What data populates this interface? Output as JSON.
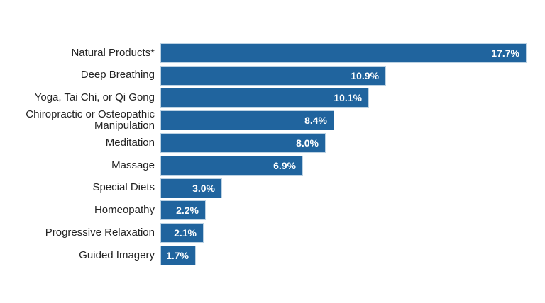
{
  "page": {
    "background_color": "#ffffff"
  },
  "chart_data": {
    "type": "bar",
    "orientation": "horizontal",
    "title": "",
    "xlabel": "",
    "ylabel": "",
    "grid": false,
    "legend": false,
    "xlim": [
      0,
      17.7
    ],
    "categories": [
      "Natural Products*",
      "Deep Breathing",
      "Yoga, Tai Chi, or Qi Gong",
      "Chiropractic or Osteopathic Manipulation",
      "Meditation",
      "Massage",
      "Special Diets",
      "Homeopathy",
      "Progressive Relaxation",
      "Guided Imagery"
    ],
    "values": [
      17.7,
      10.9,
      10.1,
      8.4,
      8.0,
      6.9,
      3.0,
      2.2,
      2.1,
      1.7
    ],
    "value_labels": [
      "17.7%",
      "10.9%",
      "10.1%",
      "8.4%",
      "8.0%",
      "6.9%",
      "3.0%",
      "2.2%",
      "2.1%",
      "1.7%"
    ],
    "bar_color": "#20649E",
    "bar_border_color": "#BCD2E3",
    "category_label_color": "#232323",
    "value_label_color": "#FFFFFF"
  }
}
